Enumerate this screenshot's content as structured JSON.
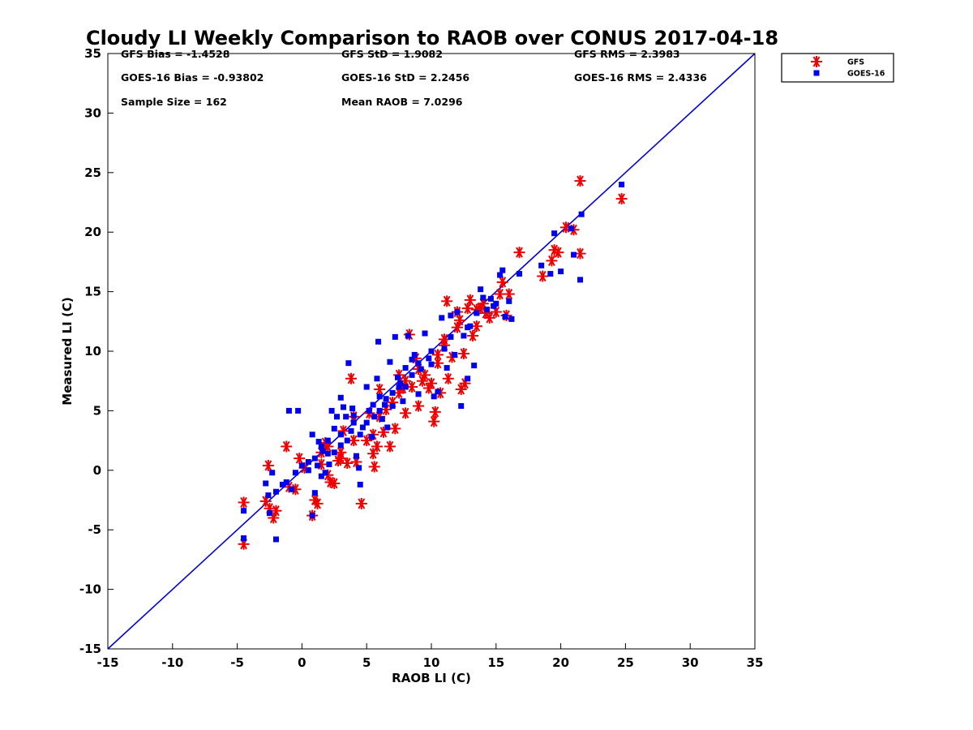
{
  "chart_data": {
    "type": "scatter",
    "title": "Cloudy LI Weekly Comparison to RAOB over CONUS 2017-04-18",
    "xlabel": "RAOB LI (C)",
    "ylabel": "Measured LI (C)",
    "xlim": [
      -15,
      35
    ],
    "ylim": [
      -15,
      35
    ],
    "xticks": [
      "-15",
      "-10",
      "-5",
      "0",
      "5",
      "10",
      "15",
      "20",
      "25",
      "30",
      "35"
    ],
    "yticks": [
      "-15",
      "-10",
      "-5",
      "0",
      "5",
      "10",
      "15",
      "20",
      "25",
      "30",
      "35"
    ],
    "grid": false,
    "legend_position": "outside-top-right",
    "stats": [
      [
        "GFS Bias = -1.4528",
        "GFS StD = 1.9082",
        "GFS RMS = 2.3983"
      ],
      [
        "GOES-16 Bias = -0.93802",
        "GOES-16 StD = 2.2456",
        "GOES-16 RMS = 2.4336"
      ],
      [
        "Sample Size = 162",
        "Mean RAOB = 7.0296",
        ""
      ]
    ],
    "reference_line": {
      "x": [
        -15,
        35
      ],
      "y": [
        -15,
        35
      ],
      "color": "#0000dd"
    },
    "series": [
      {
        "name": "GFS",
        "marker": "asterisk",
        "color": "#ee0000",
        "points": [
          [
            -4.5,
            -2.7
          ],
          [
            -4.5,
            -6.2
          ],
          [
            -2.6,
            0.4
          ],
          [
            -2.5,
            -3.2
          ],
          [
            -2.2,
            -4.0
          ],
          [
            -2.0,
            -3.4
          ],
          [
            -2.8,
            -2.6
          ],
          [
            -1.2,
            2.0
          ],
          [
            -1.0,
            -1.4
          ],
          [
            -0.5,
            -1.6
          ],
          [
            -0.2,
            1.0
          ],
          [
            0.2,
            0.2
          ],
          [
            0.8,
            -3.8
          ],
          [
            1.0,
            -2.5
          ],
          [
            1.2,
            -2.8
          ],
          [
            1.5,
            0.5
          ],
          [
            1.8,
            2.3
          ],
          [
            2.0,
            -0.4
          ],
          [
            2.2,
            -1.0
          ],
          [
            2.5,
            -1.1
          ],
          [
            2.8,
            0.8
          ],
          [
            3.0,
            1.5
          ],
          [
            3.2,
            3.3
          ],
          [
            3.5,
            0.6
          ],
          [
            3.8,
            7.7
          ],
          [
            4.0,
            4.5
          ],
          [
            4.2,
            0.7
          ],
          [
            4.6,
            -2.8
          ],
          [
            5.0,
            2.5
          ],
          [
            5.2,
            4.8
          ],
          [
            5.5,
            1.4
          ],
          [
            5.6,
            0.3
          ],
          [
            5.8,
            2.0
          ],
          [
            6.0,
            6.8
          ],
          [
            6.3,
            3.2
          ],
          [
            6.5,
            5.1
          ],
          [
            6.8,
            2.0
          ],
          [
            7.0,
            5.7
          ],
          [
            7.2,
            3.5
          ],
          [
            7.5,
            8.0
          ],
          [
            7.8,
            6.9
          ],
          [
            8.0,
            4.8
          ],
          [
            8.3,
            11.4
          ],
          [
            8.5,
            7.0
          ],
          [
            8.8,
            9.4
          ],
          [
            9.0,
            5.4
          ],
          [
            9.3,
            7.5
          ],
          [
            9.5,
            8.0
          ],
          [
            9.8,
            6.9
          ],
          [
            10.0,
            7.3
          ],
          [
            10.2,
            4.1
          ],
          [
            10.3,
            4.9
          ],
          [
            10.5,
            9.7
          ],
          [
            10.7,
            6.5
          ],
          [
            11.0,
            11.0
          ],
          [
            11.2,
            14.2
          ],
          [
            11.3,
            7.7
          ],
          [
            11.6,
            9.5
          ],
          [
            12.0,
            13.3
          ],
          [
            12.2,
            12.6
          ],
          [
            12.3,
            6.8
          ],
          [
            12.6,
            7.3
          ],
          [
            12.5,
            9.8
          ],
          [
            12.8,
            13.6
          ],
          [
            13.0,
            14.3
          ],
          [
            13.2,
            11.3
          ],
          [
            13.5,
            12.1
          ],
          [
            13.8,
            13.6
          ],
          [
            14.2,
            13.2
          ],
          [
            14.5,
            12.8
          ],
          [
            15.0,
            13.3
          ],
          [
            15.3,
            14.8
          ],
          [
            15.5,
            15.8
          ],
          [
            15.8,
            13.0
          ],
          [
            16.0,
            14.8
          ],
          [
            16.8,
            18.3
          ],
          [
            18.6,
            16.3
          ],
          [
            19.3,
            17.6
          ],
          [
            19.5,
            18.5
          ],
          [
            19.8,
            18.3
          ],
          [
            20.4,
            20.4
          ],
          [
            21.0,
            20.2
          ],
          [
            21.5,
            24.3
          ],
          [
            21.5,
            18.2
          ],
          [
            24.7,
            22.8
          ],
          [
            2.0,
            2.0
          ],
          [
            3.0,
            1.0
          ],
          [
            4.0,
            2.5
          ],
          [
            1.5,
            1.5
          ],
          [
            6.0,
            4.5
          ],
          [
            7.5,
            6.5
          ],
          [
            9.0,
            8.5
          ],
          [
            10.5,
            9.0
          ],
          [
            12.0,
            12.0
          ],
          [
            13.5,
            13.5
          ],
          [
            5.5,
            3.0
          ],
          [
            8.0,
            7.5
          ],
          [
            11.0,
            10.5
          ],
          [
            14.0,
            14.0
          ]
        ]
      },
      {
        "name": "GOES-16",
        "marker": "square",
        "color": "#0000ee",
        "points": [
          [
            -4.5,
            -3.4
          ],
          [
            -4.5,
            -5.7
          ],
          [
            -2.8,
            -1.1
          ],
          [
            -2.6,
            -2.1
          ],
          [
            -2.5,
            -3.6
          ],
          [
            -2.3,
            -0.2
          ],
          [
            -2.0,
            -5.8
          ],
          [
            -2.0,
            -1.8
          ],
          [
            -1.5,
            -1.2
          ],
          [
            -1.2,
            -1.0
          ],
          [
            -1.0,
            5.0
          ],
          [
            -0.8,
            -1.6
          ],
          [
            -0.5,
            -0.2
          ],
          [
            -0.3,
            5.0
          ],
          [
            0.0,
            0.4
          ],
          [
            0.5,
            0.7
          ],
          [
            0.8,
            3.0
          ],
          [
            1.0,
            -1.9
          ],
          [
            0.8,
            -3.8
          ],
          [
            1.2,
            0.4
          ],
          [
            1.3,
            2.4
          ],
          [
            1.5,
            -0.5
          ],
          [
            1.6,
            1.6
          ],
          [
            1.8,
            -0.2
          ],
          [
            2.0,
            1.4
          ],
          [
            2.1,
            0.5
          ],
          [
            2.3,
            5.0
          ],
          [
            2.5,
            3.5
          ],
          [
            2.7,
            4.5
          ],
          [
            3.0,
            2.1
          ],
          [
            3.0,
            6.1
          ],
          [
            3.2,
            5.3
          ],
          [
            3.4,
            4.5
          ],
          [
            3.6,
            9.0
          ],
          [
            3.8,
            3.3
          ],
          [
            3.9,
            5.2
          ],
          [
            4.0,
            4.6
          ],
          [
            4.2,
            1.2
          ],
          [
            4.4,
            0.2
          ],
          [
            4.5,
            -1.2
          ],
          [
            4.7,
            3.6
          ],
          [
            5.0,
            7.0
          ],
          [
            5.2,
            5.0
          ],
          [
            5.4,
            2.8
          ],
          [
            5.6,
            4.5
          ],
          [
            5.8,
            7.7
          ],
          [
            5.9,
            10.8
          ],
          [
            6.0,
            6.2
          ],
          [
            6.2,
            4.3
          ],
          [
            6.4,
            5.5
          ],
          [
            6.6,
            3.6
          ],
          [
            6.8,
            9.1
          ],
          [
            7.0,
            5.4
          ],
          [
            7.2,
            11.2
          ],
          [
            7.4,
            7.8
          ],
          [
            7.6,
            7.3
          ],
          [
            7.8,
            5.8
          ],
          [
            8.0,
            8.6
          ],
          [
            8.2,
            11.3
          ],
          [
            8.5,
            9.3
          ],
          [
            8.7,
            9.7
          ],
          [
            9.0,
            6.4
          ],
          [
            9.2,
            8.5
          ],
          [
            9.5,
            11.5
          ],
          [
            9.8,
            9.4
          ],
          [
            10.0,
            8.9
          ],
          [
            10.2,
            6.2
          ],
          [
            10.5,
            6.6
          ],
          [
            10.8,
            12.8
          ],
          [
            11.0,
            10.2
          ],
          [
            11.2,
            8.6
          ],
          [
            11.5,
            13.0
          ],
          [
            11.8,
            9.7
          ],
          [
            12.0,
            13.3
          ],
          [
            12.3,
            5.4
          ],
          [
            12.5,
            11.3
          ],
          [
            12.8,
            7.7
          ],
          [
            13.0,
            12.1
          ],
          [
            13.3,
            8.8
          ],
          [
            13.5,
            13.2
          ],
          [
            13.8,
            15.2
          ],
          [
            14.0,
            14.5
          ],
          [
            14.3,
            13.5
          ],
          [
            14.6,
            14.4
          ],
          [
            15.0,
            14.0
          ],
          [
            15.3,
            16.4
          ],
          [
            15.5,
            16.8
          ],
          [
            15.7,
            12.9
          ],
          [
            16.0,
            14.2
          ],
          [
            16.2,
            12.7
          ],
          [
            16.8,
            16.5
          ],
          [
            18.5,
            17.2
          ],
          [
            19.2,
            16.5
          ],
          [
            19.5,
            19.9
          ],
          [
            20.0,
            16.7
          ],
          [
            20.8,
            20.3
          ],
          [
            21.0,
            18.1
          ],
          [
            21.5,
            16.0
          ],
          [
            21.6,
            21.5
          ],
          [
            24.7,
            24.0
          ],
          [
            1.0,
            1.0
          ],
          [
            2.0,
            2.5
          ],
          [
            3.0,
            3.0
          ],
          [
            4.0,
            4.0
          ],
          [
            5.0,
            4.0
          ],
          [
            6.0,
            5.0
          ],
          [
            7.0,
            6.5
          ],
          [
            8.0,
            7.0
          ],
          [
            9.0,
            9.0
          ],
          [
            10.0,
            10.0
          ],
          [
            1.5,
            2.0
          ],
          [
            2.5,
            1.5
          ],
          [
            3.5,
            2.5
          ],
          [
            4.5,
            3.0
          ],
          [
            5.5,
            5.5
          ],
          [
            6.5,
            6.0
          ],
          [
            7.5,
            7.0
          ],
          [
            8.5,
            8.0
          ],
          [
            0.5,
            0.0
          ],
          [
            11.5,
            11.2
          ],
          [
            12.8,
            12.0
          ],
          [
            14.8,
            13.8
          ]
        ]
      }
    ]
  }
}
